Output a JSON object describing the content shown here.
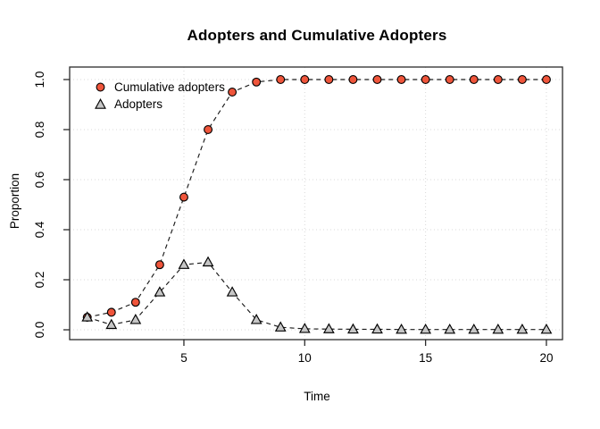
{
  "title": "Adopters and Cumulative Adopters",
  "colors": {
    "cumulative_fill": "#ef553b",
    "adopters_fill": "#c6c6c6",
    "marker_stroke": "#000000",
    "line": "#1a1a1a",
    "grid": "#d8d8d8",
    "frame": "#2b2b2b",
    "tick": "#2b2b2b",
    "text": "#000000",
    "background": "#ffffff"
  },
  "chart_data": {
    "type": "line",
    "title": "Adopters and Cumulative Adopters",
    "xlabel": "Time",
    "ylabel": "Proportion",
    "xlim": [
      1,
      20
    ],
    "ylim": [
      0.0,
      1.0
    ],
    "xticks": [
      5,
      10,
      15,
      20
    ],
    "ytick_labels": [
      "0.0",
      "0.2",
      "0.4",
      "0.6",
      "0.8",
      "1.0"
    ],
    "grid": true,
    "grid_style": "dotted",
    "line_style": "dashed",
    "legend_position": "top-left",
    "x": [
      1,
      2,
      3,
      4,
      5,
      6,
      7,
      8,
      9,
      10,
      11,
      12,
      13,
      14,
      15,
      16,
      17,
      18,
      19,
      20
    ],
    "series": [
      {
        "name": "Cumulative adopters",
        "marker": "circle",
        "fill": "#ef553b",
        "values": [
          0.05,
          0.07,
          0.11,
          0.26,
          0.53,
          0.8,
          0.95,
          0.99,
          1.0,
          1.0,
          1.0,
          1.0,
          1.0,
          1.0,
          1.0,
          1.0,
          1.0,
          1.0,
          1.0,
          1.0
        ]
      },
      {
        "name": "Adopters",
        "marker": "triangle",
        "fill": "#c6c6c6",
        "values": [
          0.05,
          0.02,
          0.04,
          0.15,
          0.26,
          0.27,
          0.15,
          0.04,
          0.01,
          0.004,
          0.003,
          0.002,
          0.002,
          0.001,
          0.001,
          0.001,
          0.001,
          0.001,
          0.001,
          0.001
        ]
      }
    ]
  }
}
